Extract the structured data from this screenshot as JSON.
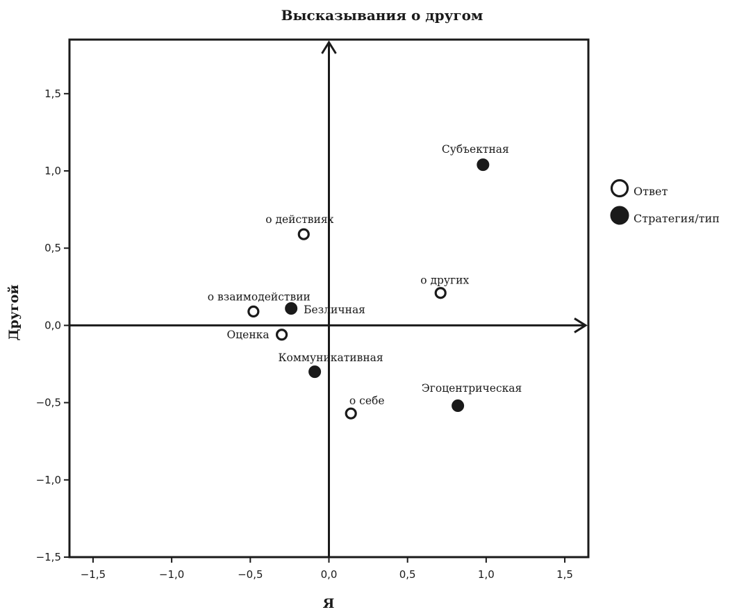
{
  "chart_data": {
    "type": "scatter",
    "title": "Высказывания о другом",
    "xlabel": "Я",
    "ylabel": "Другой",
    "xlim": [
      -1.65,
      1.65
    ],
    "ylim": [
      -1.5,
      1.85
    ],
    "xticks": [
      -1.5,
      -1.0,
      -0.5,
      0.0,
      0.5,
      1.0,
      1.5
    ],
    "yticks": [
      -1.5,
      -1.0,
      -0.5,
      0.0,
      0.5,
      1.0,
      1.5
    ],
    "tick_labels_x": [
      "−1,5",
      "−1,0",
      "−0,5",
      "0,0",
      "0,5",
      "1,0",
      "1,5"
    ],
    "tick_labels_y": [
      "−1,5",
      "−1,0",
      "−0,5",
      "0,0",
      "0,5",
      "1,0",
      "1,5"
    ],
    "grid": false,
    "legend_position": "right",
    "series": [
      {
        "name": "Ответ",
        "marker": "open-circle",
        "color": "#1a1a1a",
        "points": [
          {
            "x": -0.16,
            "y": 0.59,
            "label": "о действиях"
          },
          {
            "x": -0.48,
            "y": 0.09,
            "label": "о взаимодействии"
          },
          {
            "x": -0.3,
            "y": -0.06,
            "label": "Оценка"
          },
          {
            "x": 0.71,
            "y": 0.21,
            "label": "о других"
          },
          {
            "x": 0.14,
            "y": -0.57,
            "label": "о себе"
          }
        ]
      },
      {
        "name": "Стратегия/тип",
        "marker": "filled-circle",
        "color": "#1a1a1a",
        "points": [
          {
            "x": 0.98,
            "y": 1.04,
            "label": "Субъектная"
          },
          {
            "x": -0.24,
            "y": 0.11,
            "label": "Безличная"
          },
          {
            "x": -0.09,
            "y": -0.3,
            "label": "Коммуникативная"
          },
          {
            "x": 0.82,
            "y": -0.52,
            "label": "Эгоцентрическая"
          }
        ]
      }
    ]
  }
}
